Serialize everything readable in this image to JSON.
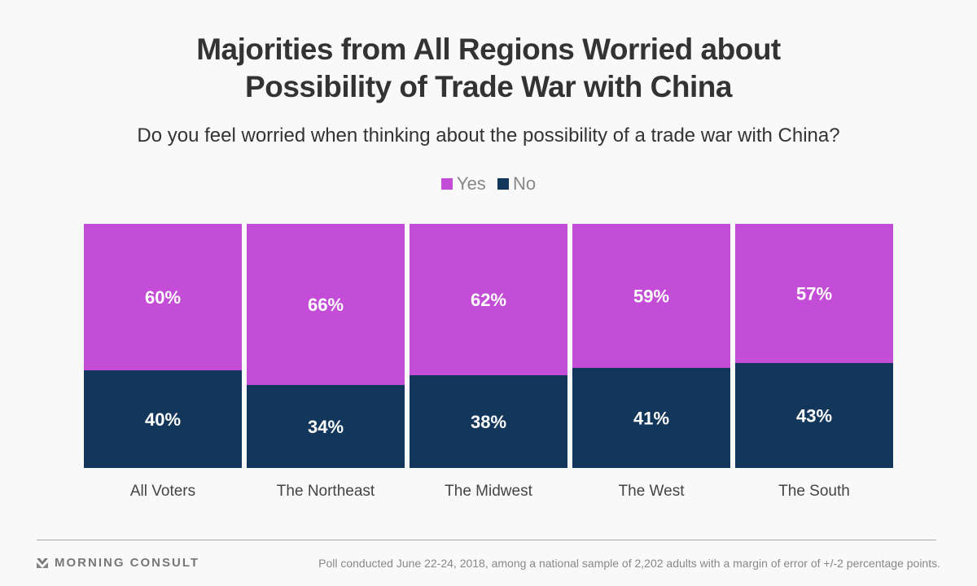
{
  "chart_data": {
    "type": "bar",
    "stacked": true,
    "normalized": true,
    "title": "Majorities from All Regions Worried about Possibility of Trade War with China",
    "subtitle": "Do you feel worried when thinking about the possibility of a trade war with China?",
    "categories": [
      "All Voters",
      "The Northeast",
      "The Midwest",
      "The West",
      "The South"
    ],
    "series": [
      {
        "name": "Yes",
        "color": "#C34DD6",
        "values": [
          60,
          66,
          62,
          59,
          57
        ],
        "labels": [
          "60%",
          "66%",
          "62%",
          "59%",
          "57%"
        ]
      },
      {
        "name": "No",
        "color": "#13375A",
        "values": [
          40,
          34,
          38,
          41,
          43
        ],
        "labels": [
          "40%",
          "34%",
          "38%",
          "41%",
          "43%"
        ]
      }
    ],
    "ylim": [
      0,
      100
    ],
    "xlabel": "",
    "ylabel": "",
    "grid": false,
    "legend_position": "top-center"
  },
  "title_line1": "Majorities from All Regions Worried about",
  "title_line2": "Possibility of Trade War with China",
  "subtitle": "Do you feel worried when thinking about the possibility of a trade war with China?",
  "legend": [
    {
      "label": "Yes",
      "color": "#C34DD6"
    },
    {
      "label": "No",
      "color": "#13375A"
    }
  ],
  "footer": {
    "brand": "MORNING CONSULT",
    "note": "Poll conducted June 22-24, 2018, among a national sample of 2,202 adults with a margin of error of +/-2 percentage points."
  }
}
